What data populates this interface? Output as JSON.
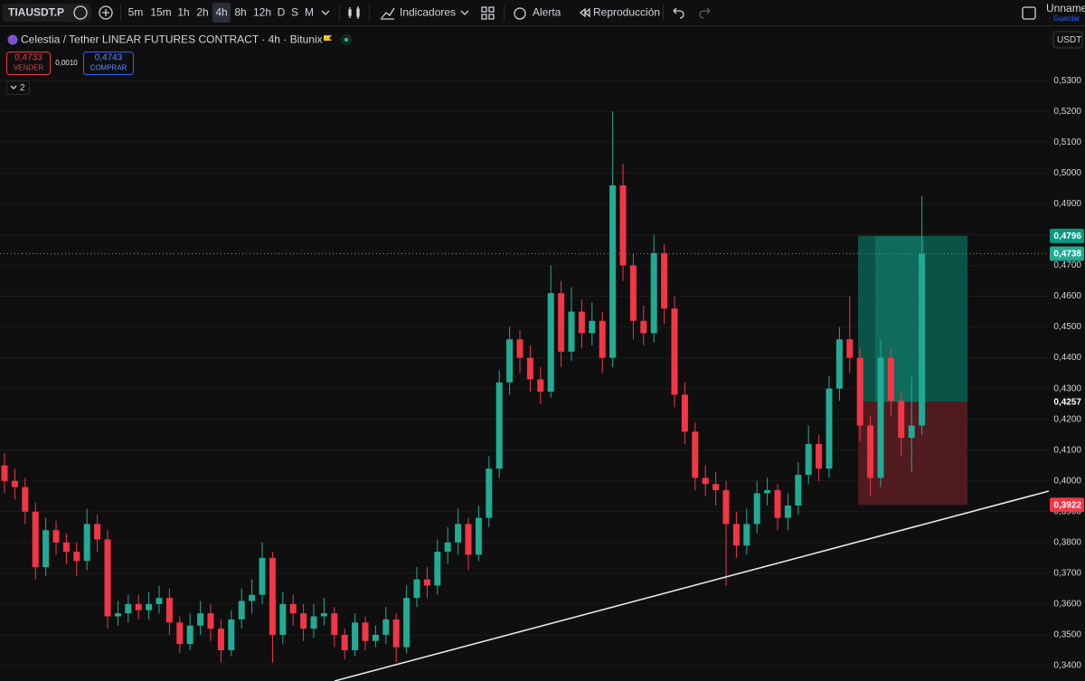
{
  "toolbar": {
    "symbol": "TIAUSDT.P",
    "timeframes": [
      "5m",
      "15m",
      "1h",
      "2h",
      "4h",
      "8h",
      "12h",
      "D",
      "S",
      "M"
    ],
    "active_timeframe": "4h",
    "indicators": "Indicadores",
    "alert": "Alerta",
    "replay": "Reproducción",
    "layout_name": "Unnamed",
    "save": "Guardar"
  },
  "header": {
    "title": "Celestia / Tether LINEAR FUTURES CONTRACT · 4h · Bitunix",
    "sell_price": "0,4733",
    "sell": "VENDER",
    "spread": "0,0010",
    "buy_price": "0,4743",
    "buy": "COMPRAR",
    "indicator_count": "2",
    "currency": "USDT"
  },
  "chart_data": {
    "type": "candlestick",
    "open": [
      0.405,
      0.4,
      0.398,
      0.39,
      0.372,
      0.384,
      0.38,
      0.377,
      0.374,
      0.386,
      0.381,
      0.356,
      0.357,
      0.36,
      0.358,
      0.36,
      0.362,
      0.354,
      0.347,
      0.353,
      0.357,
      0.352,
      0.345,
      0.355,
      0.361,
      0.363,
      0.375,
      0.35,
      0.36,
      0.357,
      0.352,
      0.356,
      0.357,
      0.35,
      0.345,
      0.354,
      0.348,
      0.35,
      0.355,
      0.346,
      0.362,
      0.368,
      0.366,
      0.377,
      0.38,
      0.386,
      0.376,
      0.388,
      0.404,
      0.432,
      0.446,
      0.44,
      0.433,
      0.429,
      0.461,
      0.442,
      0.455,
      0.448,
      0.452,
      0.44,
      0.496,
      0.47,
      0.452,
      0.448,
      0.474,
      0.456,
      0.428,
      0.416,
      0.401,
      0.399,
      0.397,
      0.386,
      0.379,
      0.386,
      0.396,
      0.397,
      0.388,
      0.392,
      0.402,
      0.412,
      0.404,
      0.43,
      0.446,
      0.44,
      0.418,
      0.401,
      0.44,
      0.426,
      0.414,
      0.418
    ],
    "high": [
      0.409,
      0.404,
      0.401,
      0.393,
      0.388,
      0.387,
      0.383,
      0.38,
      0.391,
      0.389,
      0.384,
      0.361,
      0.363,
      0.363,
      0.364,
      0.366,
      0.365,
      0.356,
      0.357,
      0.361,
      0.36,
      0.355,
      0.358,
      0.365,
      0.368,
      0.38,
      0.377,
      0.364,
      0.363,
      0.36,
      0.36,
      0.362,
      0.359,
      0.352,
      0.357,
      0.356,
      0.353,
      0.359,
      0.357,
      0.366,
      0.372,
      0.372,
      0.381,
      0.385,
      0.391,
      0.388,
      0.392,
      0.408,
      0.436,
      0.45,
      0.449,
      0.444,
      0.437,
      0.47,
      0.465,
      0.463,
      0.459,
      0.458,
      0.455,
      0.52,
      0.503,
      0.474,
      0.457,
      0.48,
      0.477,
      0.46,
      0.432,
      0.419,
      0.405,
      0.403,
      0.4,
      0.39,
      0.391,
      0.4,
      0.401,
      0.399,
      0.396,
      0.406,
      0.418,
      0.415,
      0.434,
      0.45,
      0.46,
      0.443,
      0.421,
      0.446,
      0.443,
      0.429,
      0.434,
      0.4925
    ],
    "low": [
      0.396,
      0.394,
      0.386,
      0.368,
      0.369,
      0.376,
      0.373,
      0.369,
      0.371,
      0.377,
      0.352,
      0.353,
      0.354,
      0.355,
      0.355,
      0.357,
      0.35,
      0.344,
      0.345,
      0.35,
      0.348,
      0.341,
      0.343,
      0.352,
      0.357,
      0.36,
      0.341,
      0.347,
      0.353,
      0.348,
      0.349,
      0.353,
      0.346,
      0.342,
      0.343,
      0.345,
      0.346,
      0.347,
      0.341,
      0.344,
      0.359,
      0.362,
      0.363,
      0.373,
      0.376,
      0.371,
      0.374,
      0.385,
      0.401,
      0.428,
      0.435,
      0.429,
      0.425,
      0.427,
      0.437,
      0.439,
      0.443,
      0.444,
      0.435,
      0.437,
      0.465,
      0.446,
      0.444,
      0.445,
      0.451,
      0.424,
      0.412,
      0.397,
      0.395,
      0.392,
      0.366,
      0.375,
      0.376,
      0.383,
      0.392,
      0.384,
      0.384,
      0.389,
      0.399,
      0.4,
      0.401,
      0.426,
      0.435,
      0.413,
      0.395,
      0.398,
      0.421,
      0.408,
      0.403,
      0.415
    ],
    "close": [
      0.4,
      0.398,
      0.39,
      0.372,
      0.384,
      0.38,
      0.377,
      0.374,
      0.386,
      0.381,
      0.356,
      0.357,
      0.36,
      0.358,
      0.36,
      0.362,
      0.354,
      0.347,
      0.353,
      0.357,
      0.352,
      0.345,
      0.355,
      0.361,
      0.363,
      0.375,
      0.35,
      0.36,
      0.357,
      0.352,
      0.356,
      0.357,
      0.35,
      0.345,
      0.354,
      0.348,
      0.35,
      0.355,
      0.346,
      0.362,
      0.368,
      0.366,
      0.377,
      0.38,
      0.386,
      0.376,
      0.388,
      0.404,
      0.432,
      0.446,
      0.44,
      0.433,
      0.429,
      0.461,
      0.442,
      0.455,
      0.448,
      0.452,
      0.44,
      0.496,
      0.47,
      0.452,
      0.448,
      0.474,
      0.456,
      0.428,
      0.416,
      0.401,
      0.399,
      0.397,
      0.386,
      0.379,
      0.386,
      0.396,
      0.397,
      0.388,
      0.392,
      0.402,
      0.412,
      0.404,
      0.43,
      0.446,
      0.44,
      0.418,
      0.401,
      0.44,
      0.426,
      0.414,
      0.418,
      0.4738
    ],
    "up_color": "#22ab94",
    "down_color": "#f23645",
    "ylim": [
      0.335,
      0.548
    ],
    "yticks": [
      {
        "value": 0.34,
        "label": "0,3400"
      },
      {
        "value": 0.35,
        "label": "0,3500"
      },
      {
        "value": 0.36,
        "label": "0,3600"
      },
      {
        "value": 0.37,
        "label": "0,3700"
      },
      {
        "value": 0.38,
        "label": "0,3800"
      },
      {
        "value": 0.39,
        "label": "0,3900"
      },
      {
        "value": 0.4,
        "label": "0,4000"
      },
      {
        "value": 0.41,
        "label": "0,4100"
      },
      {
        "value": 0.42,
        "label": "0,4200"
      },
      {
        "value": 0.43,
        "label": "0,4300"
      },
      {
        "value": 0.44,
        "label": "0,4400"
      },
      {
        "value": 0.45,
        "label": "0,4500"
      },
      {
        "value": 0.46,
        "label": "0,4600"
      },
      {
        "value": 0.47,
        "label": "0,4700"
      },
      {
        "value": 0.48,
        "label": "0,4800"
      },
      {
        "value": 0.49,
        "label": "0,4900"
      },
      {
        "value": 0.5,
        "label": "0,5000"
      },
      {
        "value": 0.51,
        "label": "0,5100"
      },
      {
        "value": 0.52,
        "label": "0,5200"
      },
      {
        "value": 0.53,
        "label": "0,5300"
      }
    ],
    "grid": true,
    "last_price": {
      "value": 0.4738,
      "label": "0,4738"
    },
    "position": {
      "target": {
        "value": 0.4796,
        "label": "0,4796"
      },
      "entry": {
        "value": 0.4257,
        "label": "0,4257"
      },
      "stop": {
        "value": 0.3922,
        "label": "0,3922"
      }
    }
  }
}
